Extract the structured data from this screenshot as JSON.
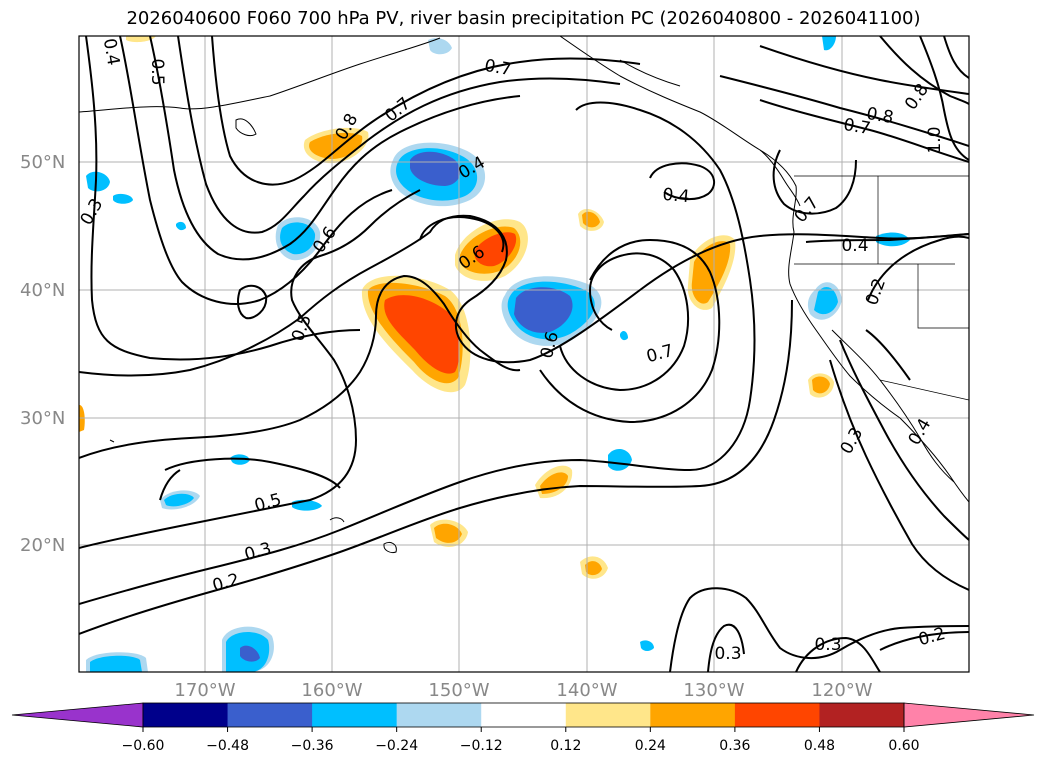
{
  "title": "2026040600 F060 700 hPa PV, river basin precipitation PC (2026040800 - 2026041100)",
  "map": {
    "lat_labels": [
      "50°N",
      "40°N",
      "30°N",
      "20°N"
    ],
    "lon_labels": [
      "170°W",
      "160°W",
      "150°W",
      "140°W",
      "130°W",
      "120°W"
    ],
    "contour_labels": [
      "0.4",
      "0.5",
      "0.3",
      "0.8",
      "0.7",
      "0.7",
      "0.6",
      "0.5",
      "0.4",
      "0.6",
      "0.4",
      "0.7",
      "0.6",
      "0.7",
      "0.8",
      "0.8",
      "0.7",
      "1.0",
      "0.4",
      "0.2",
      "0.4",
      "0.3",
      "0.5",
      "0.3",
      "0.2",
      "0.3",
      "0.3",
      "0.2"
    ]
  },
  "colorbar": {
    "ticks": [
      "−0.60",
      "−0.48",
      "−0.36",
      "−0.24",
      "−0.12",
      "0.12",
      "0.24",
      "0.36",
      "0.48",
      "0.60"
    ],
    "colors": [
      "#9933cc",
      "#00008b",
      "#3a5fcd",
      "#00bfff",
      "#add8f0",
      "#ffffff",
      "#ffe68a",
      "#ffa500",
      "#ff4500",
      "#b22222",
      "#ff82a9"
    ]
  }
}
